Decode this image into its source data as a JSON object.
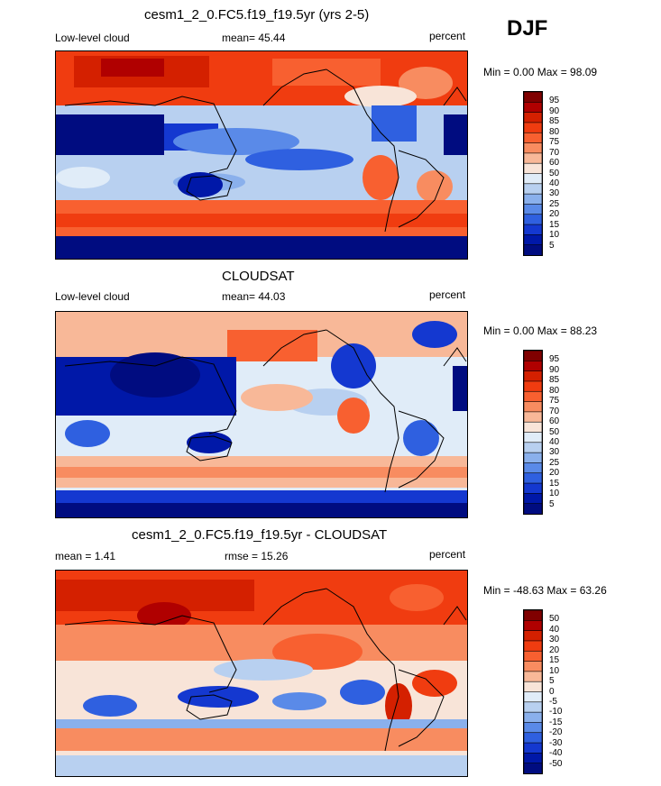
{
  "season": "DJF",
  "units_label": "percent",
  "panels": [
    {
      "title": "cesm1_2_0.FC5.f19_f19.5yr (yrs 2-5)",
      "left_label": "Low-level cloud",
      "stat": "mean=  45.44",
      "minmax": "Min =   0.00 Max =  98.09",
      "scale": "abs"
    },
    {
      "title": "CLOUDSAT",
      "left_label": "Low-level cloud",
      "stat": "mean=  44.03",
      "minmax": "Min =   0.00 Max =  88.23",
      "scale": "abs"
    },
    {
      "title": "cesm1_2_0.FC5.f19_f19.5yr - CLOUDSAT",
      "left_label": "mean =   1.41",
      "stat": "rmse =  15.26",
      "minmax": "Min = -48.63 Max =  63.26",
      "scale": "diff"
    }
  ],
  "colorbars": {
    "abs": {
      "ticks": [
        "95",
        "90",
        "85",
        "80",
        "75",
        "70",
        "60",
        "50",
        "40",
        "30",
        "25",
        "20",
        "15",
        "10",
        "5"
      ],
      "colors": [
        "#800000",
        "#b00000",
        "#d42000",
        "#f03c10",
        "#f86030",
        "#f88c60",
        "#f8b898",
        "#f8e4d8",
        "#e0ecf8",
        "#b8d0f0",
        "#8ab0ec",
        "#5a8ae8",
        "#2f60e0",
        "#1438d0",
        "#0018a8",
        "#000c80"
      ]
    },
    "diff": {
      "ticks": [
        "50",
        "40",
        "30",
        "20",
        "15",
        "10",
        "5",
        "0",
        "-5",
        "-10",
        "-15",
        "-20",
        "-30",
        "-40",
        "-50"
      ],
      "colors": [
        "#800000",
        "#b00000",
        "#d42000",
        "#f03c10",
        "#f86030",
        "#f88c60",
        "#f8b898",
        "#f8e4d8",
        "#e0ecf8",
        "#b8d0f0",
        "#8ab0ec",
        "#5a8ae8",
        "#2f60e0",
        "#1438d0",
        "#0018a8",
        "#000c80"
      ]
    }
  }
}
